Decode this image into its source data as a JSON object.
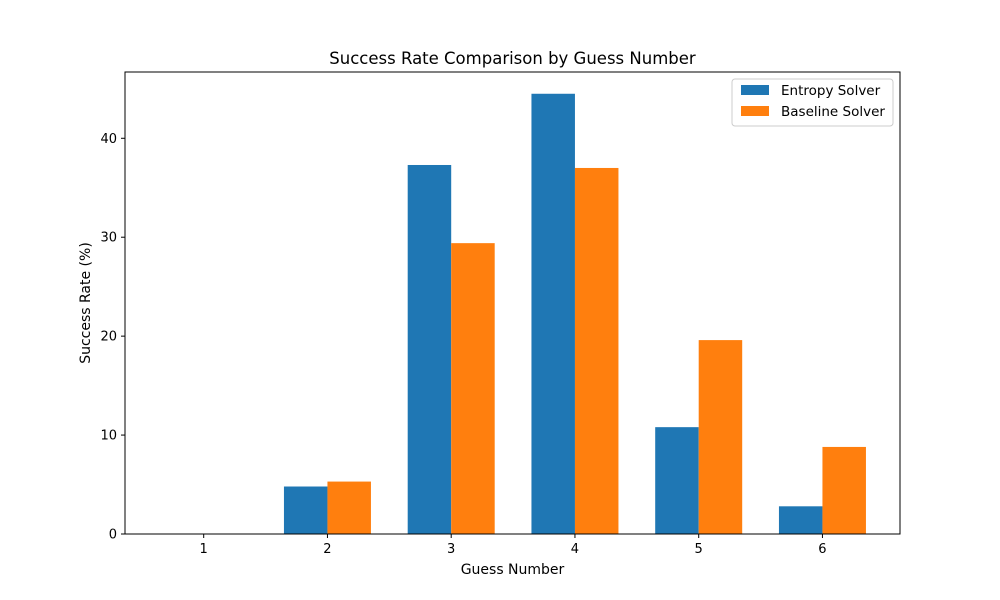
{
  "chart_data": {
    "type": "bar",
    "title": "Success Rate Comparison by Guess Number",
    "xlabel": "Guess Number",
    "ylabel": "Success Rate (%)",
    "categories": [
      "1",
      "2",
      "3",
      "4",
      "5",
      "6"
    ],
    "ylim": [
      0,
      46.7
    ],
    "yticks": [
      0,
      10,
      20,
      30,
      40
    ],
    "grid": false,
    "legend_position": "top-right",
    "series": [
      {
        "name": "Entropy Solver",
        "color": "#1f77b4",
        "values": [
          0,
          4.8,
          37.3,
          44.5,
          10.8,
          2.8
        ]
      },
      {
        "name": "Baseline Solver",
        "color": "#ff7f0e",
        "values": [
          0,
          5.3,
          29.4,
          37.0,
          19.6,
          8.8
        ]
      }
    ]
  }
}
